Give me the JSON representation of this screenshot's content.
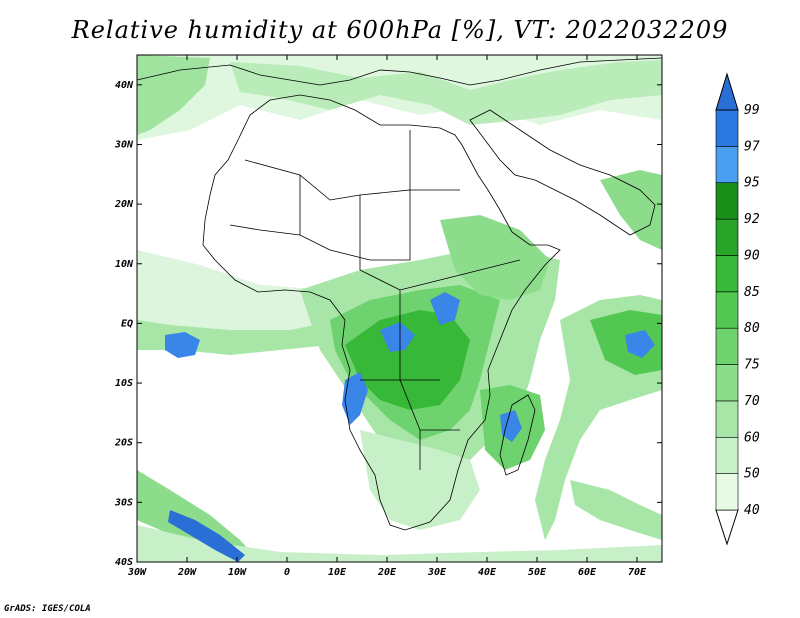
{
  "title": "Relative humidity at 600hPa [%], VT: 2022032209",
  "credit": "GrADS: IGES/COLA",
  "map": {
    "lon_range": [
      -30,
      75
    ],
    "lat_range": [
      -40,
      45
    ],
    "x_ticks": [
      {
        "lon": -30,
        "label": "30W"
      },
      {
        "lon": -20,
        "label": "20W"
      },
      {
        "lon": -10,
        "label": "10W"
      },
      {
        "lon": 0,
        "label": "0"
      },
      {
        "lon": 10,
        "label": "10E"
      },
      {
        "lon": 20,
        "label": "20E"
      },
      {
        "lon": 30,
        "label": "30E"
      },
      {
        "lon": 40,
        "label": "40E"
      },
      {
        "lon": 50,
        "label": "50E"
      },
      {
        "lon": 60,
        "label": "60E"
      },
      {
        "lon": 70,
        "label": "70E"
      }
    ],
    "y_ticks": [
      {
        "lat": 40,
        "label": "40N"
      },
      {
        "lat": 30,
        "label": "30N"
      },
      {
        "lat": 20,
        "label": "20N"
      },
      {
        "lat": 10,
        "label": "10N"
      },
      {
        "lat": 0,
        "label": "EQ"
      },
      {
        "lat": -10,
        "label": "10S"
      },
      {
        "lat": -20,
        "label": "20S"
      },
      {
        "lat": -30,
        "label": "30S"
      },
      {
        "lat": -40,
        "label": "40S"
      }
    ]
  },
  "colorbar": {
    "levels": [
      "40",
      "50",
      "60",
      "70",
      "75",
      "80",
      "85",
      "90",
      "92",
      "95",
      "97",
      "99"
    ],
    "colors": [
      "#e6fae6",
      "#c8f0c8",
      "#a8e6a8",
      "#8cdc8c",
      "#6ed26e",
      "#52c852",
      "#38b838",
      "#28a428",
      "#1a8f1a",
      "#4a9ff0",
      "#2a78e0",
      "#1e5cc8",
      "#2a6fd6"
    ]
  }
}
